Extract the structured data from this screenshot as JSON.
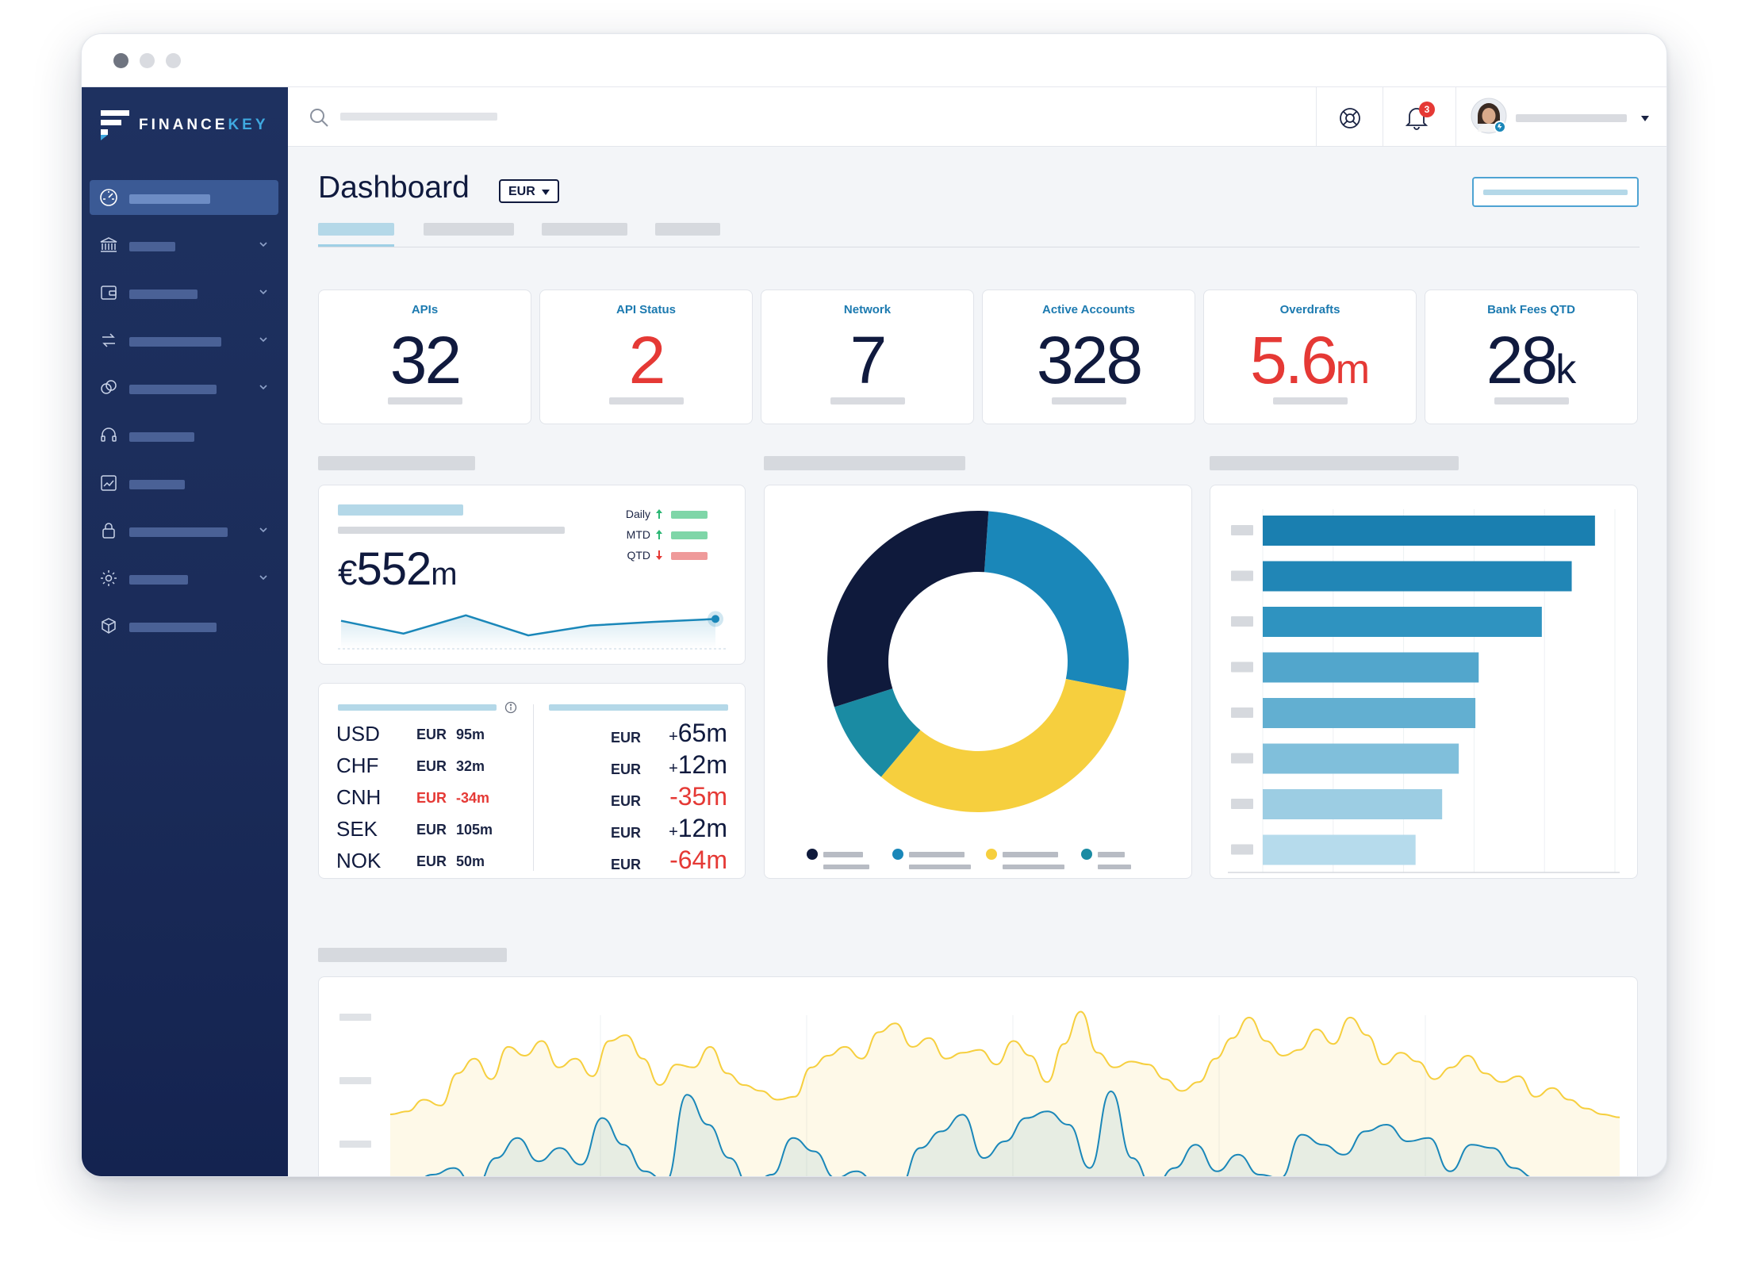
{
  "brand": {
    "name_primary": "FINANCE",
    "name_accent": "KEY"
  },
  "header": {
    "title": "Dashboard",
    "currency": "EUR",
    "notifications": "3"
  },
  "kpis": [
    {
      "label": "APIs",
      "value": "32",
      "unit": "",
      "tone": "normal"
    },
    {
      "label": "API Status",
      "value": "2",
      "unit": "",
      "tone": "alert"
    },
    {
      "label": "Network",
      "value": "7",
      "unit": "",
      "tone": "normal"
    },
    {
      "label": "Active Accounts",
      "value": "328",
      "unit": "",
      "tone": "normal"
    },
    {
      "label": "Overdrafts",
      "value": "5.6",
      "unit": "m",
      "tone": "alert"
    },
    {
      "label": "Bank Fees QTD",
      "value": "28",
      "unit": "k",
      "tone": "normal"
    }
  ],
  "balance": {
    "symbol": "€",
    "value": "552",
    "unit": "m",
    "trend": [
      {
        "label": "Daily",
        "dir": "up"
      },
      {
        "label": "MTD",
        "dir": "up"
      },
      {
        "label": "QTD",
        "dir": "down"
      }
    ],
    "sparkline": [
      0.55,
      0.2,
      0.7,
      0.15,
      0.42,
      0.52,
      0.6
    ]
  },
  "fx": {
    "rows": [
      {
        "code": "USD",
        "base": "EUR",
        "amount": "95m",
        "neg": false
      },
      {
        "code": "CHF",
        "base": "EUR",
        "amount": "32m",
        "neg": false
      },
      {
        "code": "CNH",
        "base": "EUR",
        "amount": "-34m",
        "neg": true
      },
      {
        "code": "SEK",
        "base": "EUR",
        "amount": "105m",
        "neg": false
      },
      {
        "code": "NOK",
        "base": "EUR",
        "amount": "50m",
        "neg": false
      }
    ],
    "deltas": [
      {
        "base": "EUR",
        "sign": "+",
        "value": "65m",
        "neg": false
      },
      {
        "base": "EUR",
        "sign": "+",
        "value": "12m",
        "neg": false
      },
      {
        "base": "EUR",
        "sign": "",
        "value": "-35m",
        "neg": true
      },
      {
        "base": "EUR",
        "sign": "+",
        "value": "12m",
        "neg": false
      },
      {
        "base": "EUR",
        "sign": "",
        "value": "-64m",
        "neg": true
      }
    ]
  },
  "colors": {
    "navy": "#0f1a3c",
    "blue": "#1a87b9",
    "yellow": "#f6cf3e",
    "teal": "#1a8ba3",
    "alert": "#e53935",
    "green": "#7fd6a8",
    "pink": "#ef9a9a"
  },
  "chart_data": [
    {
      "type": "pie",
      "donut": true,
      "values": [
        27,
        33,
        9,
        31
      ],
      "colors": [
        "#1a87b9",
        "#f6cf3e",
        "#1a8ba3",
        "#0f1a3c"
      ]
    },
    {
      "type": "bar",
      "orientation": "horizontal",
      "values": [
        100,
        93,
        84,
        65,
        64,
        59,
        54,
        46
      ],
      "xlim": [
        0,
        106
      ]
    },
    {
      "type": "area",
      "series": [
        {
          "color": "#f6cf3e",
          "values": [
            20,
            22,
            30,
            26,
            48,
            58,
            44,
            66,
            60,
            70,
            52,
            58,
            46,
            70,
            74,
            58,
            40,
            54,
            52,
            66,
            48,
            40,
            36,
            30,
            32,
            52,
            60,
            66,
            58,
            76,
            82,
            66,
            72,
            58,
            62,
            64,
            54,
            70,
            60,
            42,
            68,
            90,
            62,
            52,
            56,
            54,
            44,
            36,
            42,
            58,
            72,
            86,
            70,
            60,
            64,
            78,
            68,
            86,
            74,
            54,
            62,
            56,
            44,
            52,
            60,
            48,
            42,
            46,
            32,
            38,
            30,
            24,
            20,
            18
          ]
        },
        {
          "color": "#1a87b9",
          "values": [
            0,
            4,
            10,
            14,
            2,
            20,
            32,
            18,
            26,
            16,
            44,
            28,
            12,
            6,
            58,
            40,
            20,
            2,
            10,
            32,
            24,
            8,
            12,
            4,
            2,
            26,
            36,
            46,
            20,
            30,
            44,
            48,
            40,
            14,
            60,
            20,
            2,
            14,
            28,
            12,
            22,
            10,
            8,
            34,
            28,
            22,
            36,
            40,
            30,
            32,
            12,
            28,
            26,
            14,
            8,
            4,
            2,
            4,
            8
          ]
        }
      ]
    }
  ]
}
